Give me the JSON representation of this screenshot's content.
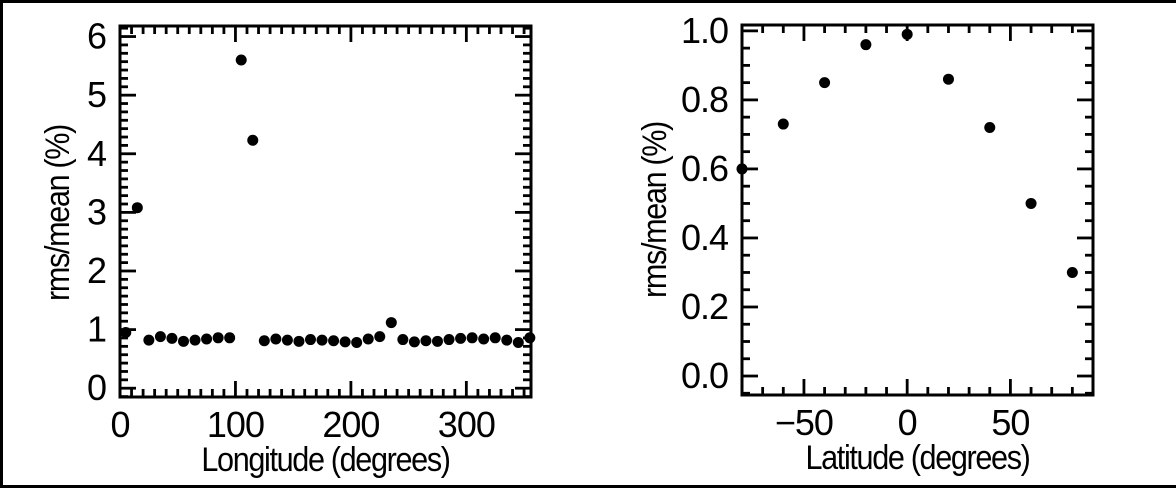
{
  "figure": {
    "background": "#ffffff",
    "border_color": "#000000",
    "axis_color": "#000000",
    "marker_color": "#000000"
  },
  "chart_data": [
    {
      "type": "scatter",
      "title": "",
      "xlabel": "Longitude (degrees)",
      "ylabel": "rms/mean (%)",
      "xlim": [
        0,
        356
      ],
      "ylim": [
        -0.15,
        6.18
      ],
      "grid": false,
      "legend": false,
      "x_ticks": {
        "major": [
          0,
          100,
          200,
          300
        ],
        "labels": [
          "0",
          "100",
          "200",
          "300"
        ],
        "minor_step": 10
      },
      "y_ticks": {
        "major": [
          0,
          1,
          2,
          3,
          4,
          5,
          6
        ],
        "labels": [
          "0",
          "1",
          "2",
          "3",
          "4",
          "5",
          "6"
        ],
        "minor_step": 0.142857
      },
      "points": {
        "x": [
          5,
          15,
          25,
          35,
          45,
          55,
          65,
          75,
          85,
          95,
          105,
          115,
          125,
          135,
          145,
          155,
          165,
          175,
          185,
          195,
          205,
          215,
          225,
          235,
          245,
          255,
          265,
          275,
          285,
          295,
          305,
          315,
          325,
          335,
          345,
          355
        ],
        "y": [
          0.95,
          3.08,
          0.82,
          0.88,
          0.85,
          0.8,
          0.82,
          0.84,
          0.86,
          0.86,
          5.6,
          4.23,
          0.81,
          0.84,
          0.82,
          0.8,
          0.83,
          0.82,
          0.81,
          0.79,
          0.78,
          0.84,
          0.88,
          1.12,
          0.83,
          0.79,
          0.81,
          0.8,
          0.83,
          0.85,
          0.86,
          0.84,
          0.86,
          0.82,
          0.78,
          0.86
        ]
      }
    },
    {
      "type": "scatter",
      "title": "",
      "xlabel": "Latitude (degrees)",
      "ylabel": "rms/mean (%)",
      "xlim": [
        -80,
        90
      ],
      "ylim": [
        -0.055,
        1.017
      ],
      "grid": false,
      "legend": false,
      "x_ticks": {
        "major": [
          -50,
          0,
          50
        ],
        "labels": [
          "−50",
          "0",
          "50"
        ],
        "minor_step": 10
      },
      "y_ticks": {
        "major": [
          0,
          0.2,
          0.4,
          0.6,
          0.8,
          1.0
        ],
        "labels": [
          "0.0",
          "0.2",
          "0.4",
          "0.6",
          "0.8",
          "1.0"
        ],
        "minor_step": 0.05
      },
      "points": {
        "x": [
          -80,
          -60,
          -40,
          -20,
          0,
          20,
          40,
          60,
          80
        ],
        "y": [
          0.6,
          0.73,
          0.85,
          0.96,
          0.99,
          0.86,
          0.72,
          0.5,
          0.3
        ]
      }
    }
  ]
}
